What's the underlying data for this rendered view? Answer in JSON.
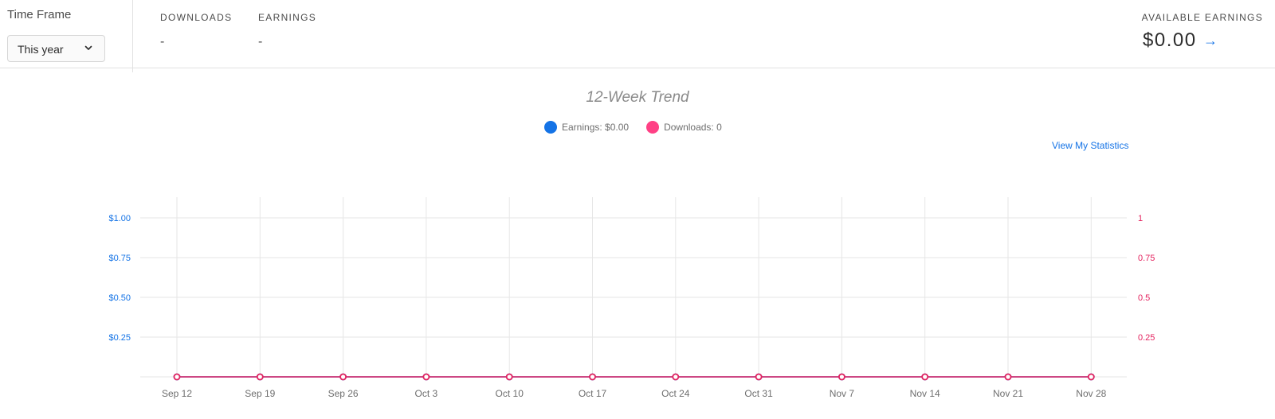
{
  "time_frame": {
    "label": "Time Frame",
    "selected": "This year"
  },
  "stats": {
    "downloads_label": "DOWNLOADS",
    "downloads_value": "-",
    "earnings_label": "EARNINGS",
    "earnings_value": "-",
    "available_label": "AVAILABLE EARNINGS",
    "available_value": "$0.00",
    "available_arrow": "→"
  },
  "colors": {
    "earnings": "#1473e6",
    "downloads": "#e4235f"
  },
  "view_statistics": "View My Statistics",
  "chart_data": {
    "type": "line",
    "title": "12-Week Trend",
    "legend": [
      "Earnings: $0.00",
      "Downloads: 0"
    ],
    "legend_placement": "top-center",
    "grid": true,
    "x": [
      "Sep 12",
      "Sep 19",
      "Sep 26",
      "Oct 3",
      "Oct 10",
      "Oct 17",
      "Oct 24",
      "Oct 31",
      "Nov 7",
      "Nov 14",
      "Nov 21",
      "Nov 28"
    ],
    "y_left": {
      "ticks": [
        "$1.00",
        "$0.75",
        "$0.50",
        "$0.25"
      ],
      "tick_values": [
        1,
        0.75,
        0.5,
        0.25
      ],
      "ylim": [
        0,
        1
      ]
    },
    "y_right": {
      "ticks": [
        "1",
        "0.75",
        "0.5",
        "0.25"
      ],
      "tick_values": [
        1,
        0.75,
        0.5,
        0.25
      ],
      "ylim": [
        0,
        1
      ]
    },
    "series": [
      {
        "name": "Earnings",
        "axis": "left",
        "values": [
          0,
          0,
          0,
          0,
          0,
          0,
          0,
          0,
          0,
          0,
          0,
          0
        ]
      },
      {
        "name": "Downloads",
        "axis": "right",
        "values": [
          0,
          0,
          0,
          0,
          0,
          0,
          0,
          0,
          0,
          0,
          0,
          0
        ]
      }
    ]
  }
}
